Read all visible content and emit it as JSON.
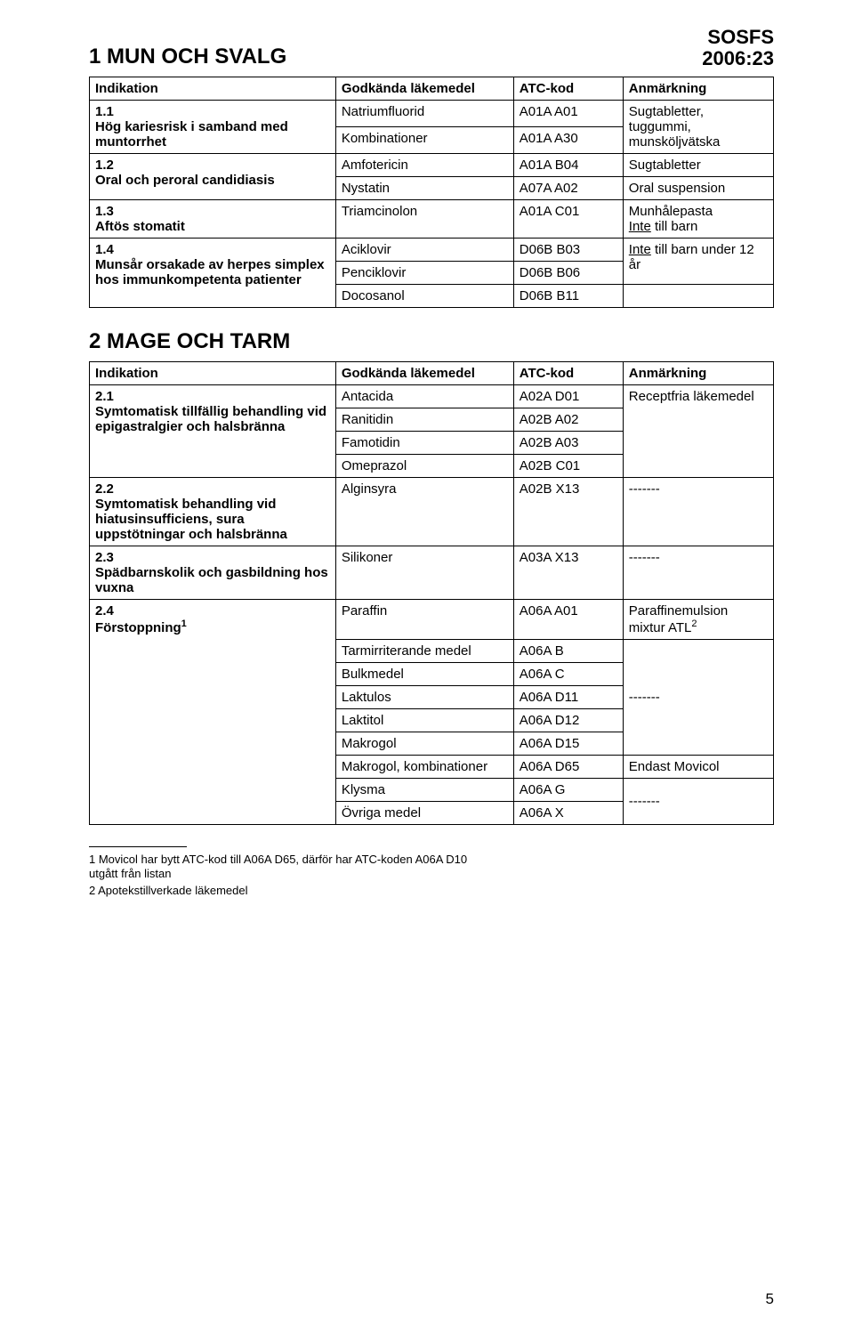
{
  "header": {
    "line1": "SOSFS",
    "line2": "2006:23"
  },
  "section1": {
    "title": "1 MUN OCH SVALG",
    "cols": [
      "Indikation",
      "Godkända läkemedel",
      "ATC-kod",
      "Anmärkning"
    ],
    "rows": [
      {
        "ind": "1.1\nHög kariesrisk i samband med muntorrhet",
        "med": "Natriumfluorid",
        "atc": "A01A A01",
        "rem": "Sugtabletter, tuggummi, munsköljvätska",
        "rowspan": 2
      },
      {
        "med": "Kombinationer",
        "atc": "A01A A30"
      },
      {
        "ind": "1.2\nOral och peroral candidiasis",
        "med": "Amfotericin",
        "atc": "A01A B04",
        "rem_a": "Sugtabletter",
        "rowspan": 2
      },
      {
        "med": "Nystatin",
        "atc": "A07A A02",
        "rem_a": "Oral suspension"
      },
      {
        "ind": "1.3\nAftös stomatit",
        "med": "Triamcinolon",
        "atc": "A01A C01",
        "rem_html": "Munhålepasta\n<u>Inte</u> till barn"
      },
      {
        "ind": "1.4\nMunsår orsakade av herpes simplex hos immunkompetenta patienter",
        "med": "Aciklovir",
        "atc": "D06B B03",
        "rem_html": "<u>Inte</u> till barn under 12 år",
        "rowspan": 3,
        "remspan": 2
      },
      {
        "med": "Penciklovir",
        "atc": "D06B B06"
      },
      {
        "med": "Docosanol",
        "atc": "D06B B11",
        "rem": ""
      }
    ]
  },
  "section2": {
    "title": "2 MAGE OCH TARM",
    "cols": [
      "Indikation",
      "Godkända läkemedel",
      "ATC-kod",
      "Anmärkning"
    ],
    "rows": [
      {
        "ind": "2.1\nSymtomatisk tillfällig behandling vid epigastralgier och halsbränna",
        "med": "Antacida",
        "atc": "A02A D01",
        "rem": "Receptfria läkemedel",
        "rowspan": 4,
        "remspan": 4
      },
      {
        "med": "Ranitidin",
        "atc": "A02B A02"
      },
      {
        "med": "Famotidin",
        "atc": "A02B A03"
      },
      {
        "med": "Omeprazol",
        "atc": "A02B C01"
      },
      {
        "ind": "2.2\nSymtomatisk behandling vid hiatusinsufficiens, sura uppstötningar och halsbränna",
        "med": "Alginsyra",
        "atc": "A02B X13",
        "rem": "-------"
      },
      {
        "ind": "2.3\nSpädbarnskolik och gasbildning hos vuxna",
        "med": "Silikoner",
        "atc": "A03A X13",
        "rem": "-------"
      },
      {
        "ind_html": "<b>2.4<br>Förstoppning<span class=\"super\">1</span></b>",
        "med": "Paraffin",
        "atc": "A06A A01",
        "rem_html": "Paraffinemulsion mixtur ATL<span class=\"super\">2</span>",
        "rowspan": 9
      },
      {
        "med": "Tarmirriterande medel",
        "atc": "A06A B",
        "rem": "",
        "remspan": 5,
        "rem_centered": "-------"
      },
      {
        "med": "Bulkmedel",
        "atc": "A06A C"
      },
      {
        "med": "Laktulos",
        "atc": "A06A D11"
      },
      {
        "med": "Laktitol",
        "atc": "A06A D12"
      },
      {
        "med": "Makrogol",
        "atc": "A06A D15"
      },
      {
        "med": "Makrogol, kombinationer",
        "atc": "A06A D65",
        "rem": "Endast Movicol"
      },
      {
        "med": "Klysma",
        "atc": "A06A G",
        "rem_centered": "-------",
        "remspan": 2
      },
      {
        "med": "Övriga medel",
        "atc": "A06A X"
      }
    ]
  },
  "footnotes": [
    "1 Movicol har bytt ATC-kod till A06A D65, därför har ATC-koden A06A D10 utgått från listan",
    "2 Apotekstillverkade läkemedel"
  ],
  "pagenum": "5"
}
